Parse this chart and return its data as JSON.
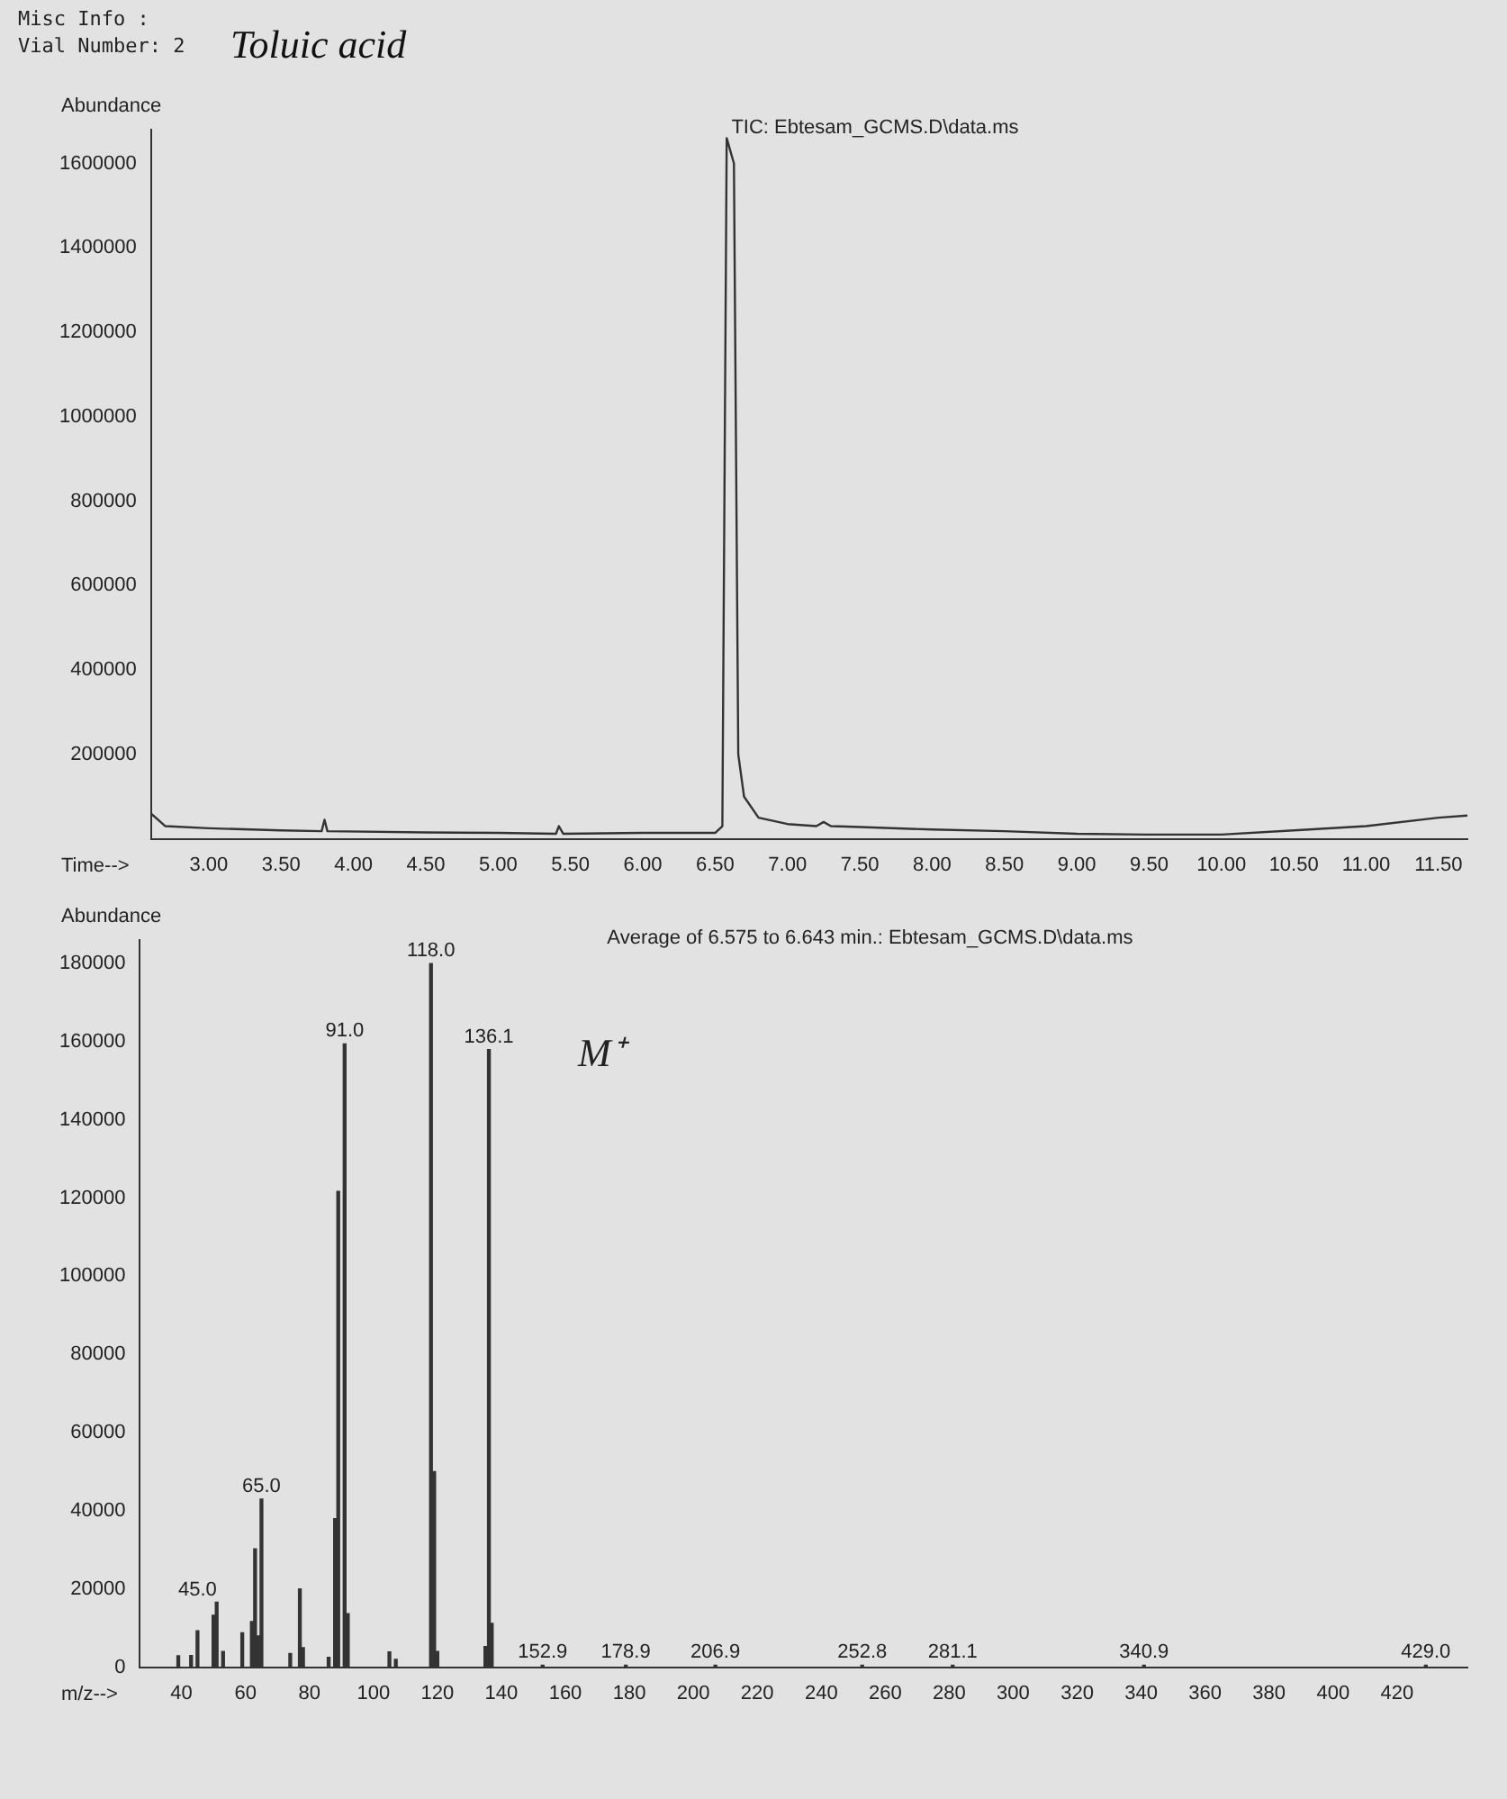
{
  "chart_data": [
    {
      "type": "line",
      "title": "TIC: Ebtesam_GCMS.D\\data.ms",
      "xlabel": "Time-->",
      "ylabel": "Abundance",
      "color": "#333333",
      "annotations": [
        "Misc Info  :",
        "Vial Number: 2",
        "Toluic acid"
      ],
      "x": [
        2.6,
        2.7,
        3.0,
        3.5,
        3.78,
        3.8,
        3.82,
        4.5,
        5.0,
        5.4,
        5.42,
        5.45,
        6.0,
        6.5,
        6.55,
        6.58,
        6.63,
        6.66,
        6.7,
        6.8,
        7.0,
        7.2,
        7.25,
        7.3,
        7.5,
        8.0,
        8.5,
        9.0,
        9.5,
        10.0,
        10.5,
        11.0,
        11.5,
        11.7
      ],
      "values": [
        60000,
        30000,
        25000,
        20000,
        18000,
        45000,
        18000,
        15000,
        14000,
        12000,
        30000,
        12000,
        14000,
        14000,
        30000,
        1660000,
        1600000,
        200000,
        100000,
        50000,
        35000,
        30000,
        40000,
        30000,
        28000,
        22000,
        18000,
        12000,
        10000,
        10000,
        20000,
        30000,
        50000,
        55000
      ],
      "xlim": [
        2.6,
        11.7
      ],
      "ylim": [
        0,
        1680000
      ],
      "xticks": [
        {
          "value": 3,
          "label": "3.00"
        },
        {
          "value": 3.5,
          "label": "3.50"
        },
        {
          "value": 4,
          "label": "4.00"
        },
        {
          "value": 4.5,
          "label": "4.50"
        },
        {
          "value": 5,
          "label": "5.00"
        },
        {
          "value": 5.5,
          "label": "5.50"
        },
        {
          "value": 6,
          "label": "6.00"
        },
        {
          "value": 6.5,
          "label": "6.50"
        },
        {
          "value": 7,
          "label": "7.00"
        },
        {
          "value": 7.5,
          "label": "7.50"
        },
        {
          "value": 8,
          "label": "8.00"
        },
        {
          "value": 8.5,
          "label": "8.50"
        },
        {
          "value": 9,
          "label": "9.00"
        },
        {
          "value": 9.5,
          "label": "9.50"
        },
        {
          "value": 10,
          "label": "10.00"
        },
        {
          "value": 10.5,
          "label": "10.50"
        },
        {
          "value": 11,
          "label": "11.00"
        },
        {
          "value": 11.5,
          "label": "11.50"
        }
      ],
      "yticks": [
        200000,
        400000,
        600000,
        800000,
        1000000,
        1200000,
        1400000,
        1600000
      ]
    },
    {
      "type": "bar",
      "title": "Average of 6.575 to 6.643 min.: Ebtesam_GCMS.D\\data.ms",
      "xlabel": "m/z-->",
      "ylabel": "Abundance",
      "color": "#333333",
      "x": [
        39,
        43,
        45.0,
        50,
        51,
        53,
        59,
        62,
        63,
        64,
        65.0,
        74,
        77,
        78,
        86,
        88,
        89,
        91.0,
        92,
        105,
        107,
        118.0,
        119,
        120,
        135,
        136.1,
        137,
        152.9,
        178.9,
        206.9,
        252.8,
        281.1,
        340.9,
        429.0
      ],
      "values": [
        2900,
        3000,
        9300,
        13300,
        16600,
        4000,
        8800,
        11700,
        30300,
        8000,
        43000,
        3500,
        20000,
        5000,
        2500,
        38000,
        121700,
        159400,
        13700,
        3900,
        2000,
        180000,
        50000,
        4000,
        5300,
        158000,
        11200,
        500,
        500,
        500,
        500,
        500,
        500,
        500
      ],
      "annotations": [
        {
          "text": "45.0",
          "x": 45.0,
          "y": 9300
        },
        {
          "text": "65.0",
          "x": 65.0,
          "y": 43000
        },
        {
          "text": "91.0",
          "x": 91.0,
          "y": 159400
        },
        {
          "text": "118.0",
          "x": 118.0,
          "y": 180000
        },
        {
          "text": "136.1",
          "x": 136.1,
          "y": 158000
        },
        {
          "text": "152.9",
          "x": 152.9,
          "y": 500
        },
        {
          "text": "178.9",
          "x": 178.9,
          "y": 500
        },
        {
          "text": "206.9",
          "x": 206.9,
          "y": 500
        },
        {
          "text": "252.8",
          "x": 252.8,
          "y": 500
        },
        {
          "text": "281.1",
          "x": 281.1,
          "y": 500
        },
        {
          "text": "340.9",
          "x": 340.9,
          "y": 500
        },
        {
          "text": "429.0",
          "x": 429.0,
          "y": 500
        },
        "M⁺"
      ],
      "xlim": [
        27,
        442
      ],
      "ylim": [
        0,
        186000
      ],
      "xticks": [
        40,
        60,
        80,
        100,
        120,
        140,
        160,
        180,
        200,
        220,
        240,
        260,
        280,
        300,
        320,
        340,
        360,
        380,
        400,
        420
      ],
      "yticks": [
        0,
        20000,
        40000,
        60000,
        80000,
        100000,
        120000,
        140000,
        160000,
        180000
      ]
    }
  ]
}
